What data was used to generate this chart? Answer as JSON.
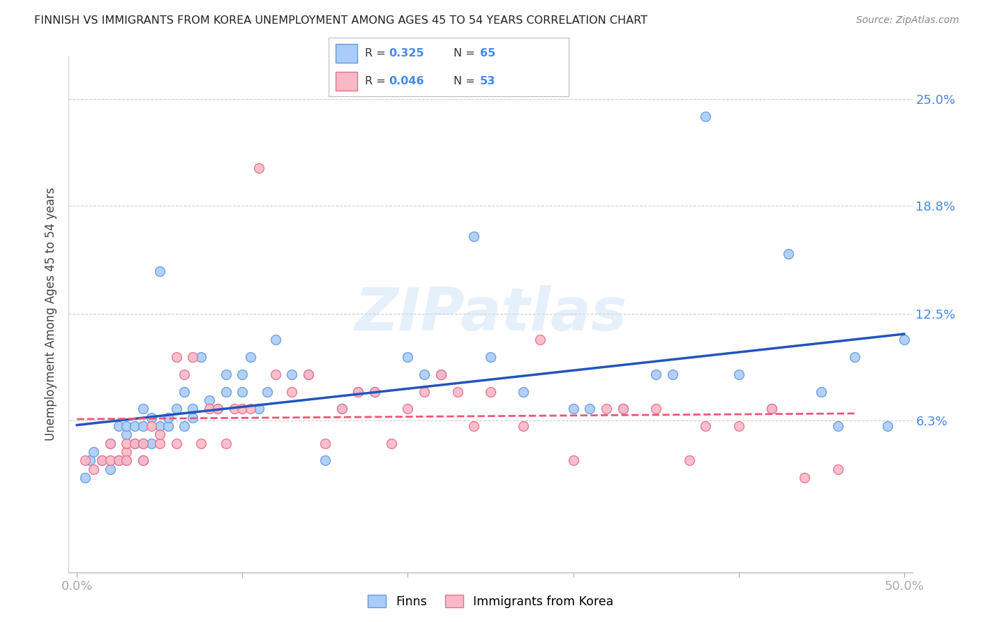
{
  "title": "FINNISH VS IMMIGRANTS FROM KOREA UNEMPLOYMENT AMONG AGES 45 TO 54 YEARS CORRELATION CHART",
  "source": "Source: ZipAtlas.com",
  "xlabel": "",
  "ylabel": "Unemployment Among Ages 45 to 54 years",
  "xlim": [
    -0.005,
    0.505
  ],
  "ylim": [
    -0.025,
    0.275
  ],
  "xticks": [
    0.0,
    0.1,
    0.2,
    0.3,
    0.4,
    0.5
  ],
  "xticklabels": [
    "0.0%",
    "",
    "",
    "",
    "",
    "50.0%"
  ],
  "ytick_positions": [
    0.063,
    0.125,
    0.188,
    0.25
  ],
  "ytick_labels": [
    "6.3%",
    "12.5%",
    "18.8%",
    "25.0%"
  ],
  "watermark": "ZIPatlas",
  "background_color": "#ffffff",
  "grid_color": "#cccccc",
  "finns_color": "#aaccf8",
  "korea_color": "#f9b8c8",
  "finns_edge_color": "#6699dd",
  "korea_edge_color": "#e8708a",
  "trend_finn_color": "#2255bb",
  "trend_korea_color": "#ee5577",
  "finns_x": [
    0.005,
    0.008,
    0.01,
    0.015,
    0.02,
    0.02,
    0.025,
    0.025,
    0.03,
    0.03,
    0.03,
    0.035,
    0.035,
    0.04,
    0.04,
    0.04,
    0.04,
    0.045,
    0.045,
    0.05,
    0.05,
    0.055,
    0.055,
    0.06,
    0.065,
    0.065,
    0.07,
    0.07,
    0.075,
    0.08,
    0.085,
    0.09,
    0.09,
    0.1,
    0.1,
    0.105,
    0.11,
    0.115,
    0.12,
    0.13,
    0.14,
    0.15,
    0.16,
    0.17,
    0.18,
    0.2,
    0.21,
    0.22,
    0.24,
    0.25,
    0.27,
    0.3,
    0.31,
    0.33,
    0.35,
    0.36,
    0.38,
    0.4,
    0.42,
    0.43,
    0.45,
    0.46,
    0.47,
    0.49,
    0.5
  ],
  "finns_y": [
    0.03,
    0.04,
    0.045,
    0.04,
    0.035,
    0.05,
    0.04,
    0.06,
    0.04,
    0.055,
    0.06,
    0.05,
    0.06,
    0.04,
    0.05,
    0.06,
    0.07,
    0.05,
    0.065,
    0.06,
    0.15,
    0.06,
    0.065,
    0.07,
    0.06,
    0.08,
    0.065,
    0.07,
    0.1,
    0.075,
    0.07,
    0.08,
    0.09,
    0.08,
    0.09,
    0.1,
    0.07,
    0.08,
    0.11,
    0.09,
    0.09,
    0.04,
    0.07,
    0.08,
    0.08,
    0.1,
    0.09,
    0.09,
    0.17,
    0.1,
    0.08,
    0.07,
    0.07,
    0.07,
    0.09,
    0.09,
    0.24,
    0.09,
    0.07,
    0.16,
    0.08,
    0.06,
    0.1,
    0.06,
    0.11
  ],
  "korea_x": [
    0.005,
    0.01,
    0.015,
    0.02,
    0.02,
    0.025,
    0.03,
    0.03,
    0.03,
    0.035,
    0.04,
    0.04,
    0.045,
    0.05,
    0.05,
    0.06,
    0.06,
    0.065,
    0.07,
    0.075,
    0.08,
    0.085,
    0.09,
    0.095,
    0.1,
    0.105,
    0.11,
    0.12,
    0.13,
    0.14,
    0.15,
    0.16,
    0.17,
    0.18,
    0.19,
    0.2,
    0.21,
    0.22,
    0.23,
    0.24,
    0.25,
    0.27,
    0.28,
    0.3,
    0.32,
    0.33,
    0.35,
    0.37,
    0.38,
    0.4,
    0.42,
    0.44,
    0.46
  ],
  "korea_y": [
    0.04,
    0.035,
    0.04,
    0.05,
    0.04,
    0.04,
    0.045,
    0.05,
    0.04,
    0.05,
    0.05,
    0.04,
    0.06,
    0.05,
    0.055,
    0.05,
    0.1,
    0.09,
    0.1,
    0.05,
    0.07,
    0.07,
    0.05,
    0.07,
    0.07,
    0.07,
    0.21,
    0.09,
    0.08,
    0.09,
    0.05,
    0.07,
    0.08,
    0.08,
    0.05,
    0.07,
    0.08,
    0.09,
    0.08,
    0.06,
    0.08,
    0.06,
    0.11,
    0.04,
    0.07,
    0.07,
    0.07,
    0.04,
    0.06,
    0.06,
    0.07,
    0.03,
    0.035
  ]
}
